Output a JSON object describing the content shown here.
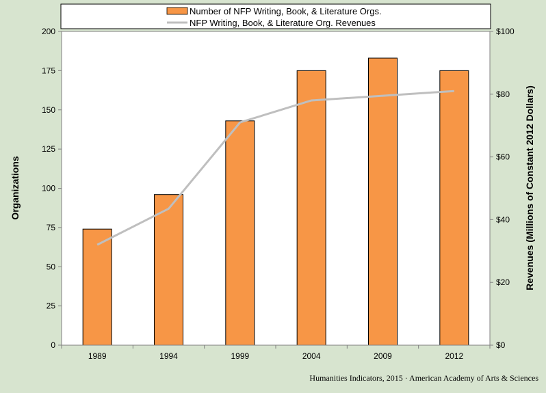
{
  "colors": {
    "background": "#d7e4cf",
    "plot_background": "#ffffff",
    "bar_fill": "#f79646",
    "bar_stroke": "#000000",
    "line": "#bfbfbf"
  },
  "legend": {
    "bar_label": "Number of NFP Writing, Book, & Literature Orgs.",
    "line_label": "NFP Writing, Book, & Literature Org. Revenues"
  },
  "credit": "Humanities  Indicators, 2015 · American Academy of Arts & Sciences",
  "chart_data": {
    "type": "bar",
    "categories": [
      "1989",
      "1994",
      "1999",
      "2004",
      "2009",
      "2012"
    ],
    "series": [
      {
        "name": "Number of NFP Writing, Book, & Literature Orgs.",
        "type": "bar",
        "axis": "left",
        "values": [
          74,
          96,
          143,
          175,
          183,
          175
        ]
      },
      {
        "name": "NFP Writing, Book, & Literature Org. Revenues",
        "type": "line",
        "axis": "right",
        "values": [
          32,
          43.5,
          71,
          78,
          79.5,
          81
        ]
      }
    ],
    "ylabel": "Organizations",
    "ylim": [
      0,
      200
    ],
    "yticks": [
      "0",
      "25",
      "50",
      "75",
      "100",
      "125",
      "150",
      "175",
      "200"
    ],
    "y2label": "Revenues (Millions of Constant 2012 Dollars)",
    "y2lim": [
      0,
      100
    ],
    "y2ticks": [
      "$0",
      "$20",
      "$40",
      "$60",
      "$80",
      "$100"
    ],
    "grid": false,
    "legend_position": "top"
  }
}
